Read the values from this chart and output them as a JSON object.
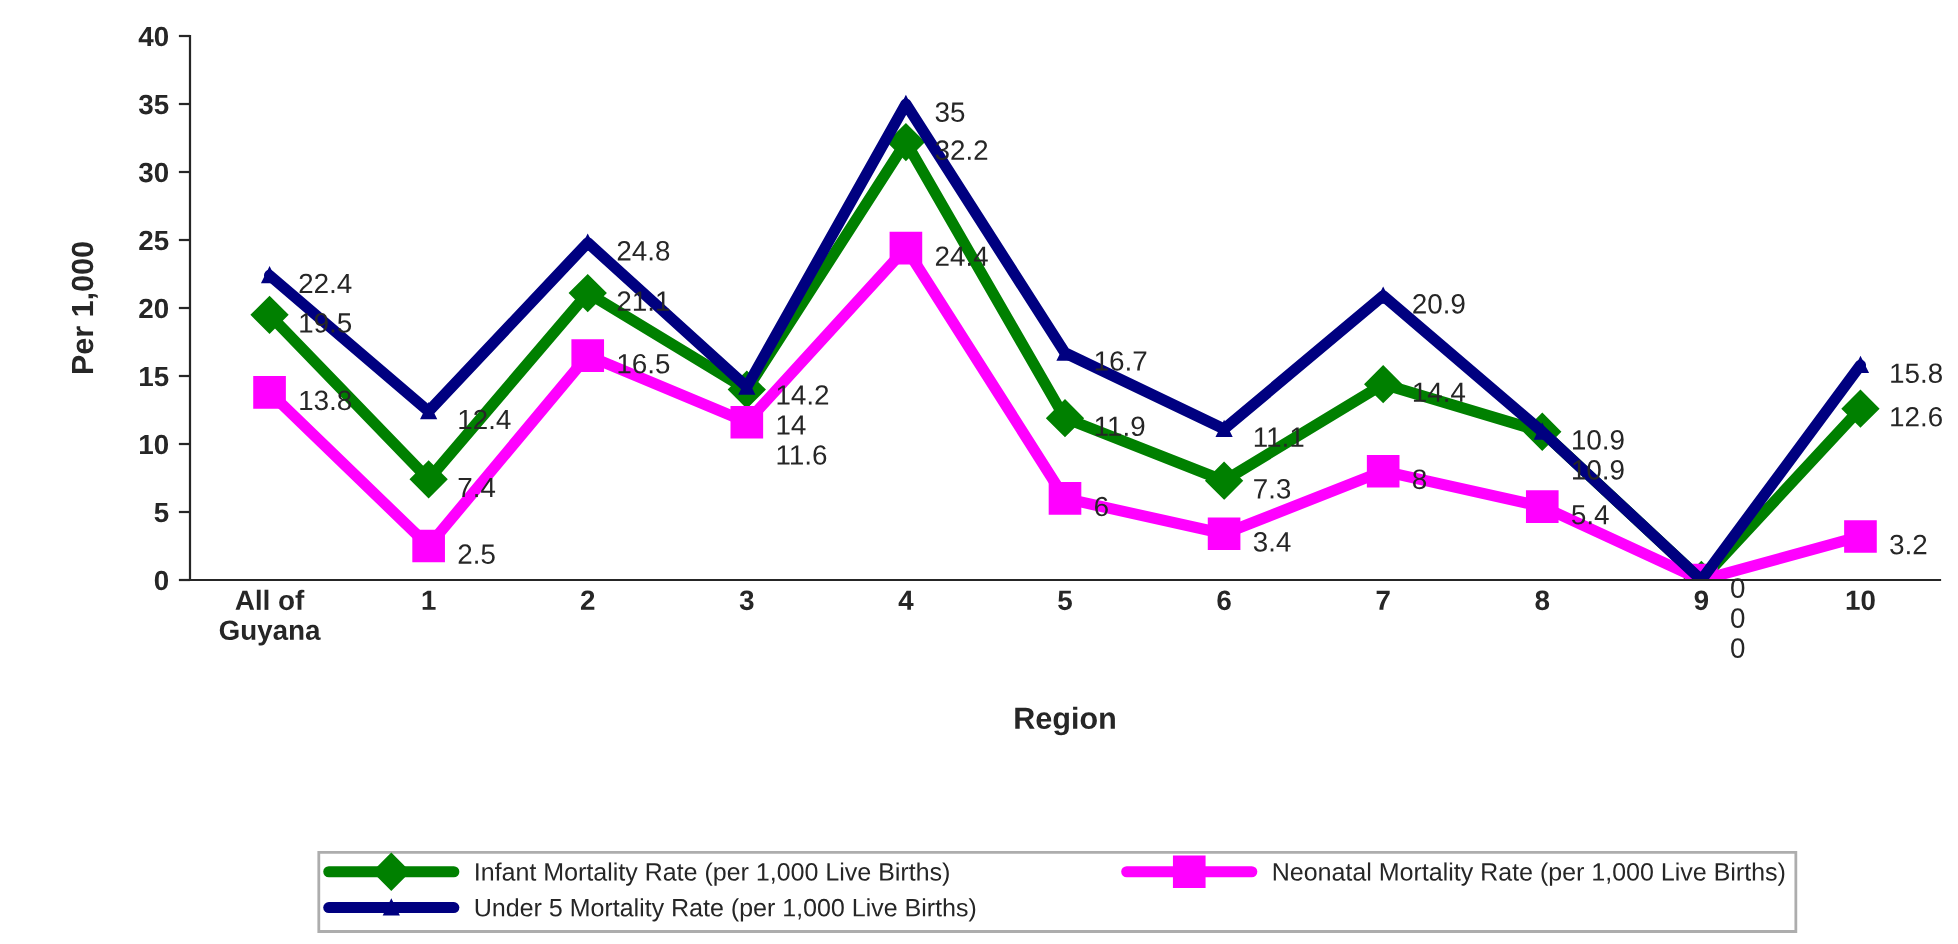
{
  "chart_data": {
    "type": "line",
    "xlabel": "Region",
    "ylabel": "Per 1,000",
    "categories": [
      "All of\nGuyana",
      "1",
      "2",
      "3",
      "4",
      "5",
      "6",
      "7",
      "8",
      "9",
      "10"
    ],
    "series": [
      {
        "name": "Infant Mortality Rate (per 1,000 Live Births)",
        "color": "#008000",
        "marker": "diamond",
        "values": [
          19.5,
          7.4,
          21.1,
          14,
          32.2,
          11.9,
          7.3,
          14.4,
          10.9,
          0,
          12.6
        ]
      },
      {
        "name": "Neonatal Mortality Rate (per 1,000 Live Births)",
        "color": "#ff00ff",
        "marker": "square",
        "values": [
          13.8,
          2.5,
          16.5,
          11.6,
          24.4,
          6,
          3.4,
          8,
          5.4,
          0,
          3.2
        ]
      },
      {
        "name": "Under 5 Mortality Rate (per 1,000 Live Births)",
        "color": "#000080",
        "marker": "triangle",
        "values": [
          22.4,
          12.4,
          24.8,
          14.2,
          35,
          16.7,
          11.1,
          20.9,
          10.9,
          0,
          15.8
        ]
      }
    ],
    "ylim": [
      0,
      40
    ],
    "yticks": [
      0,
      5,
      10,
      15,
      20,
      25,
      30,
      35,
      40
    ],
    "grid": false,
    "legend": "bottom",
    "data_labels": true,
    "line_style": "solid"
  }
}
